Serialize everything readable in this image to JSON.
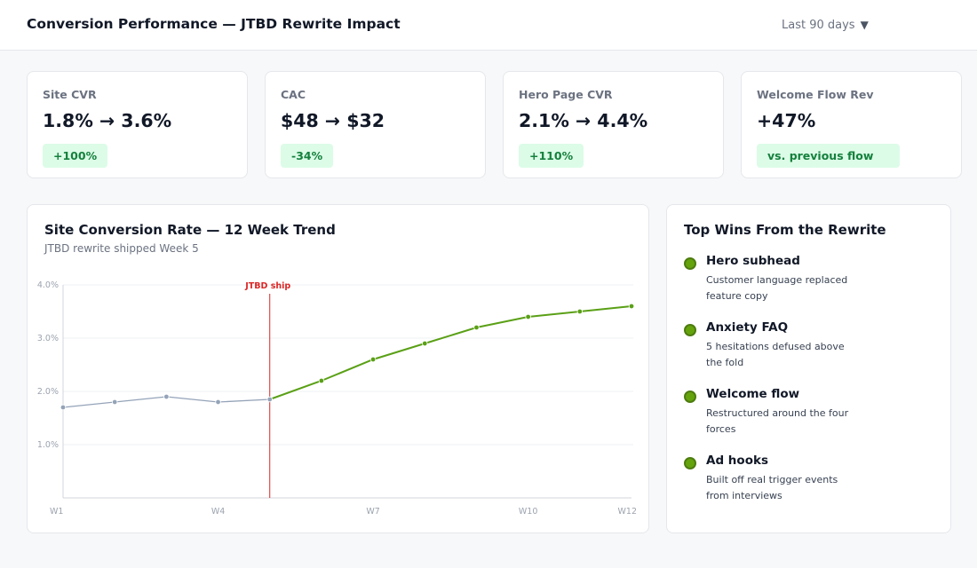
{
  "header": {
    "title": "Conversion Performance — JTBD Rewrite Impact",
    "range_label": "Last 90 days",
    "range_caret": "▼"
  },
  "kpis": [
    {
      "label": "Site CVR",
      "value": "1.8% → 3.6%",
      "badge": "+100%"
    },
    {
      "label": "CAC",
      "value": "$48 → $32",
      "badge": "-34%"
    },
    {
      "label": "Hero Page CVR",
      "value": "2.1% → 4.4%",
      "badge": "+110%"
    },
    {
      "label": "Welcome Flow Rev",
      "value": "+47%",
      "badge": "vs. previous flow"
    }
  ],
  "chart_panel": {
    "title": "Site Conversion Rate — 12 Week Trend",
    "subtitle": "JTBD rewrite shipped Week 5"
  },
  "chart_data": {
    "type": "line",
    "x": [
      "W1",
      "W2",
      "W3",
      "W4",
      "W5",
      "W6",
      "W7",
      "W8",
      "W9",
      "W10",
      "W11",
      "W12"
    ],
    "x_tick_labels": [
      "W1",
      "W4",
      "W7",
      "W10",
      "W12"
    ],
    "y_tick_labels": [
      "1.0%",
      "2.0%",
      "3.0%",
      "4.0%"
    ],
    "ylim": [
      0,
      4.0
    ],
    "y_unit": "%",
    "grid": true,
    "series": [
      {
        "values": [
          1.7,
          1.8,
          1.9,
          1.8,
          1.85,
          2.2,
          2.6,
          2.9,
          3.2,
          3.4,
          3.5,
          3.6
        ]
      }
    ],
    "colors": {
      "before": "#94a3b8",
      "after": "#5aa016",
      "marker": "#dc2626"
    },
    "annotation": {
      "label": "JTBD ship",
      "at": "W5"
    }
  },
  "wins_panel": {
    "title": "Top Wins From the Rewrite",
    "items": [
      {
        "title": "Hero subhead",
        "desc": "Customer language replaced feature copy"
      },
      {
        "title": "Anxiety FAQ",
        "desc": "5 hesitations defused above the fold"
      },
      {
        "title": "Welcome flow",
        "desc": "Restructured around the four forces"
      },
      {
        "title": "Ad hooks",
        "desc": "Built off real trigger events from interviews"
      }
    ]
  }
}
